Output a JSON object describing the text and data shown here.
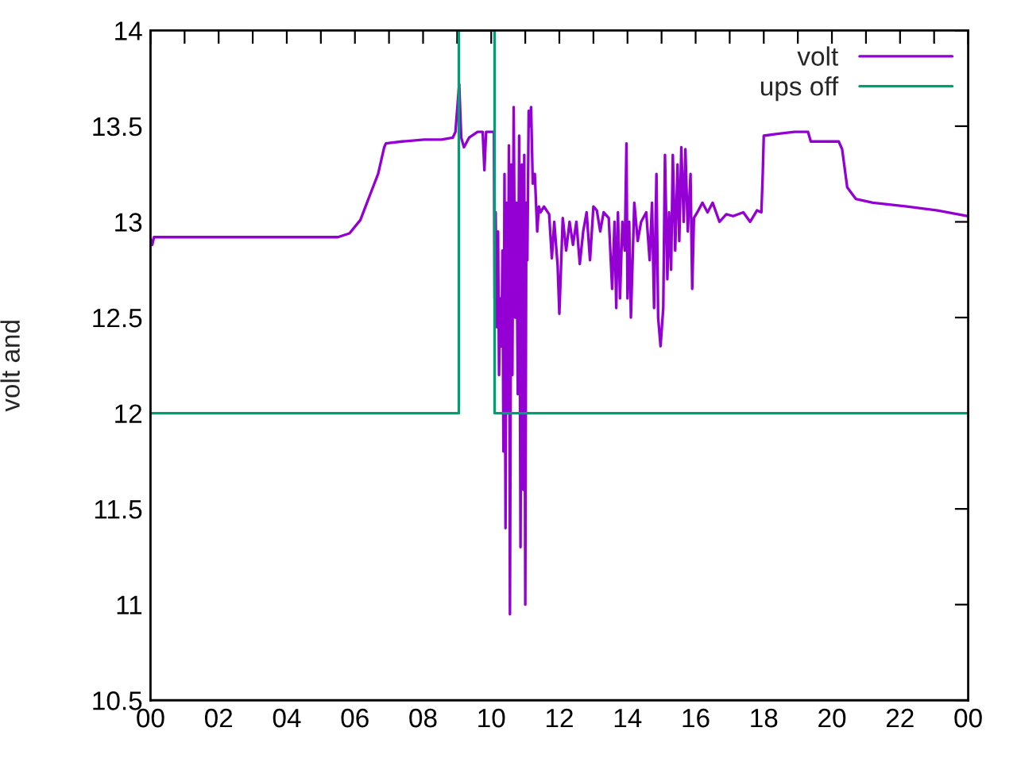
{
  "chart_data": {
    "type": "line",
    "ylabel": "volt and",
    "xlim": [
      0,
      24
    ],
    "ylim": [
      10.5,
      14
    ],
    "xticks": [
      {
        "value": 0,
        "label": "00"
      },
      {
        "value": 1,
        "label": null
      },
      {
        "value": 2,
        "label": "02"
      },
      {
        "value": 3,
        "label": null
      },
      {
        "value": 4,
        "label": "04"
      },
      {
        "value": 5,
        "label": null
      },
      {
        "value": 6,
        "label": "06"
      },
      {
        "value": 7,
        "label": null
      },
      {
        "value": 8,
        "label": "08"
      },
      {
        "value": 9,
        "label": null
      },
      {
        "value": 10,
        "label": "10"
      },
      {
        "value": 11,
        "label": null
      },
      {
        "value": 12,
        "label": "12"
      },
      {
        "value": 13,
        "label": null
      },
      {
        "value": 14,
        "label": "14"
      },
      {
        "value": 15,
        "label": null
      },
      {
        "value": 16,
        "label": "16"
      },
      {
        "value": 17,
        "label": null
      },
      {
        "value": 18,
        "label": "18"
      },
      {
        "value": 19,
        "label": null
      },
      {
        "value": 20,
        "label": "20"
      },
      {
        "value": 21,
        "label": null
      },
      {
        "value": 22,
        "label": "22"
      },
      {
        "value": 23,
        "label": null
      },
      {
        "value": 24,
        "label": "00"
      }
    ],
    "yticks": [
      10.5,
      11,
      11.5,
      12,
      12.5,
      13,
      13.5,
      14
    ],
    "grid": false,
    "legend": "top right",
    "series": [
      {
        "name": "volt",
        "color": "#9400d3",
        "x": [
          0,
          0.05,
          0.1,
          1,
          2,
          3,
          4,
          5,
          5.5,
          5.84,
          6.16,
          6.44,
          6.68,
          6.86,
          6.91,
          7.38,
          8.03,
          8.54,
          8.87,
          8.95,
          9.06,
          9.12,
          9.2,
          9.35,
          9.6,
          9.75,
          9.8,
          9.85,
          10.07,
          10.08,
          10.1,
          10.13,
          10.16,
          10.2,
          10.23,
          10.26,
          10.3,
          10.33,
          10.36,
          10.39,
          10.42,
          10.45,
          10.48,
          10.52,
          10.55,
          10.59,
          10.62,
          10.66,
          10.7,
          10.74,
          10.78,
          10.82,
          10.86,
          10.9,
          10.94,
          10.97,
          11.0,
          11.03,
          11.06,
          11.1,
          11.13,
          11.17,
          11.22,
          11.28,
          11.35,
          11.4,
          11.45,
          11.55,
          11.7,
          11.78,
          11.85,
          11.95,
          12.0,
          12.1,
          12.2,
          12.3,
          12.4,
          12.5,
          12.6,
          12.7,
          12.8,
          12.9,
          13.0,
          13.1,
          13.2,
          13.3,
          13.45,
          13.55,
          13.62,
          13.67,
          13.72,
          13.78,
          13.85,
          13.92,
          13.97,
          14.0,
          14.05,
          14.1,
          14.2,
          14.3,
          14.4,
          14.55,
          14.65,
          14.72,
          14.78,
          14.85,
          14.9,
          14.97,
          15.05,
          15.1,
          15.17,
          15.22,
          15.28,
          15.33,
          15.4,
          15.47,
          15.52,
          15.58,
          15.65,
          15.7,
          15.77,
          15.85,
          15.9,
          15.95,
          16.05,
          16.2,
          16.35,
          16.5,
          16.7,
          16.9,
          17.1,
          17.4,
          17.6,
          17.8,
          17.93,
          17.97,
          18.0,
          18.4,
          18.9,
          19.3,
          19.38,
          20.2,
          20.3,
          20.45,
          20.7,
          21.2,
          22.2,
          23.1,
          24.0
        ],
        "values": [
          12.91,
          12.88,
          12.92,
          12.92,
          12.92,
          12.92,
          12.92,
          12.92,
          12.92,
          12.94,
          13.01,
          13.14,
          13.25,
          13.39,
          13.41,
          13.42,
          13.43,
          13.43,
          13.44,
          13.47,
          13.72,
          13.44,
          13.39,
          13.44,
          13.47,
          13.47,
          13.27,
          13.47,
          13.47,
          13.47,
          12.6,
          13.05,
          12.45,
          12.95,
          12.2,
          12.6,
          12.35,
          12.85,
          11.8,
          13.25,
          11.4,
          13.1,
          12.0,
          13.4,
          10.95,
          13.3,
          12.2,
          13.6,
          12.5,
          13.1,
          12.1,
          13.45,
          11.3,
          13.3,
          11.6,
          13.35,
          11.0,
          13.1,
          12.8,
          13.58,
          13.5,
          13.6,
          13.2,
          13.25,
          12.95,
          13.08,
          13.05,
          13.08,
          13.04,
          12.81,
          13.0,
          12.77,
          12.52,
          13.02,
          12.85,
          13.0,
          12.88,
          13.0,
          12.78,
          12.95,
          13.05,
          12.8,
          13.08,
          13.06,
          12.95,
          13.05,
          13.02,
          12.65,
          13.0,
          12.55,
          13.05,
          12.6,
          13.0,
          12.85,
          13.41,
          12.6,
          13.0,
          12.5,
          13.1,
          12.9,
          13.0,
          13.05,
          12.8,
          13.1,
          12.55,
          13.25,
          12.5,
          12.35,
          12.55,
          13.35,
          12.7,
          13.05,
          12.75,
          13.35,
          12.85,
          13.3,
          12.9,
          13.39,
          13.0,
          13.38,
          12.95,
          13.25,
          12.65,
          13.02,
          13.05,
          13.1,
          13.05,
          13.1,
          13.0,
          13.04,
          13.03,
          13.05,
          13.0,
          13.06,
          13.05,
          13.25,
          13.45,
          13.46,
          13.47,
          13.47,
          13.42,
          13.42,
          13.38,
          13.18,
          13.12,
          13.1,
          13.08,
          13.06,
          13.03
        ]
      },
      {
        "name": "ups off",
        "type": "step",
        "color": "#009e73",
        "x": [
          0,
          9.05,
          10.1,
          24
        ],
        "values": [
          12,
          14,
          12,
          12
        ]
      }
    ]
  }
}
